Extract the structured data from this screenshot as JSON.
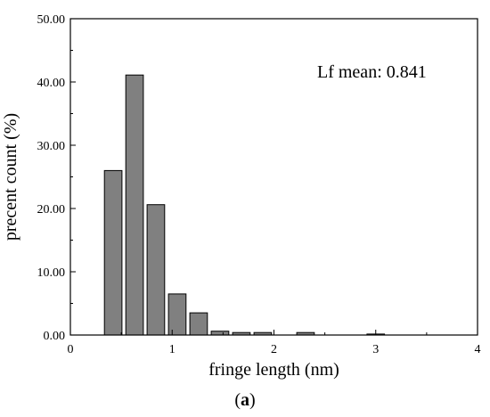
{
  "chart_data": {
    "type": "bar",
    "xlabel": "fringe length (nm)",
    "ylabel": "precent count (%)",
    "annotation": "Lf mean: 0.841",
    "xlim": [
      0,
      4
    ],
    "ylim": [
      0,
      50
    ],
    "xticks": [
      "0",
      "1",
      "2",
      "3",
      "4"
    ],
    "yticks": [
      "0.00",
      "10.00",
      "20.00",
      "30.00",
      "40.00",
      "50.00"
    ],
    "bin_width": 0.2,
    "x": [
      0.42,
      0.63,
      0.84,
      1.05,
      1.26,
      1.47,
      1.68,
      1.89,
      2.31,
      3.0
    ],
    "values": [
      26.0,
      41.1,
      20.6,
      6.5,
      3.5,
      0.6,
      0.4,
      0.4,
      0.4,
      0.15
    ],
    "bar_color": "#808080",
    "grid": false
  },
  "caption": {
    "open": "(",
    "letter": "a",
    "close": ")"
  }
}
